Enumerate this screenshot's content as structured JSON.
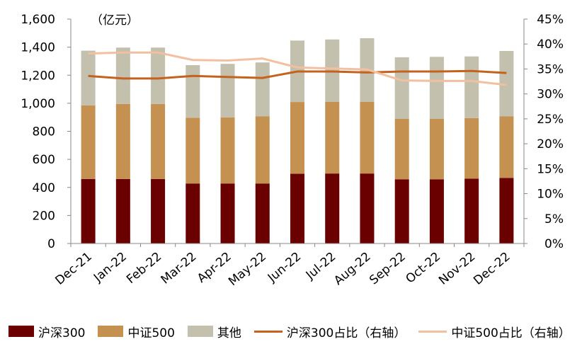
{
  "chart_data": {
    "type": "bar",
    "stacked": true,
    "unit_label": "（亿元）",
    "categories": [
      "Dec-21",
      "Jan-22",
      "Feb-22",
      "Mar-22",
      "Apr-22",
      "May-22",
      "Jun-22",
      "Jul-22",
      "Aug-22",
      "Sep-22",
      "Oct-22",
      "Nov-22",
      "Dec-22"
    ],
    "series": [
      {
        "name": "沪深300",
        "type": "bar",
        "axis": "left",
        "color": "#6B0000",
        "values": [
          460,
          460,
          460,
          428,
          428,
          428,
          497,
          499,
          499,
          458,
          458,
          462,
          468
        ]
      },
      {
        "name": "中证500",
        "type": "bar",
        "axis": "left",
        "color": "#C49150",
        "values": [
          525,
          535,
          535,
          469,
          471,
          478,
          512,
          512,
          512,
          432,
          432,
          432,
          438
        ]
      },
      {
        "name": "其他",
        "type": "bar",
        "axis": "left",
        "color": "#C4C0AE",
        "values": [
          390,
          402,
          402,
          375,
          382,
          385,
          438,
          444,
          453,
          438,
          441,
          440,
          467
        ]
      },
      {
        "name": "沪深300占比（右轴）",
        "type": "line",
        "axis": "right",
        "color": "#C4621E",
        "values": [
          33.6,
          33.1,
          33.1,
          33.6,
          33.4,
          33.2,
          34.5,
          34.5,
          34.3,
          34.5,
          34.5,
          34.6,
          34.2
        ]
      },
      {
        "name": "中证500占比（右轴）",
        "type": "line",
        "axis": "right",
        "color": "#F2BFA0",
        "values": [
          38.1,
          38.3,
          38.3,
          36.8,
          36.7,
          37.1,
          35.3,
          35.1,
          34.9,
          32.7,
          32.6,
          32.6,
          31.8
        ]
      }
    ],
    "left_axis": {
      "min": 0,
      "max": 1600,
      "step": 200,
      "tick_labels": [
        "0",
        "200",
        "400",
        "600",
        "800",
        "1,000",
        "1,200",
        "1,400",
        "1,600"
      ]
    },
    "right_axis": {
      "min": 0,
      "max": 45,
      "step": 5,
      "tick_labels": [
        "0%",
        "5%",
        "10%",
        "15%",
        "20%",
        "25%",
        "30%",
        "35%",
        "40%",
        "45%"
      ]
    },
    "grid": false,
    "legend_position": "bottom"
  }
}
